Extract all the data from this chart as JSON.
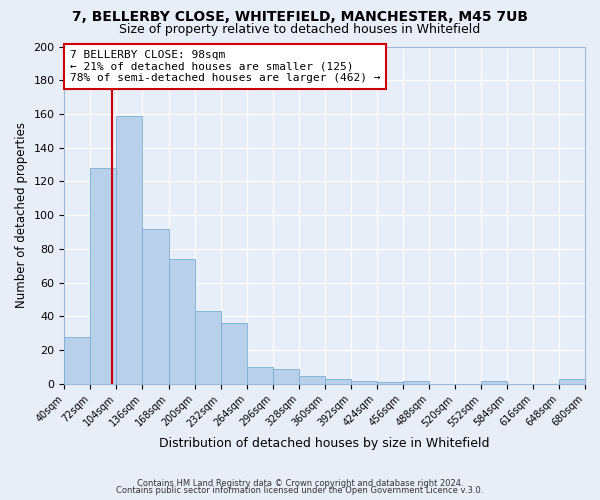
{
  "title": "7, BELLERBY CLOSE, WHITEFIELD, MANCHESTER, M45 7UB",
  "subtitle": "Size of property relative to detached houses in Whitefield",
  "xlabel": "Distribution of detached houses by size in Whitefield",
  "ylabel": "Number of detached properties",
  "bar_color": "#b8d0ea",
  "bar_edge_color": "#7aafd4",
  "background_color": "#e8eef8",
  "grid_color": "#ffffff",
  "bins": [
    40,
    72,
    104,
    136,
    168,
    200,
    232,
    264,
    296,
    328,
    360,
    392,
    424,
    456,
    488,
    520,
    552,
    584,
    616,
    648,
    680
  ],
  "values": [
    28,
    128,
    159,
    92,
    74,
    43,
    36,
    10,
    9,
    5,
    3,
    2,
    1,
    2,
    0,
    0,
    2,
    0,
    0,
    3
  ],
  "tick_labels": [
    "40sqm",
    "72sqm",
    "104sqm",
    "136sqm",
    "168sqm",
    "200sqm",
    "232sqm",
    "264sqm",
    "296sqm",
    "328sqm",
    "360sqm",
    "392sqm",
    "424sqm",
    "456sqm",
    "488sqm",
    "520sqm",
    "552sqm",
    "584sqm",
    "616sqm",
    "648sqm",
    "680sqm"
  ],
  "property_line_x": 98,
  "property_line_color": "#cc0000",
  "annotation_title": "7 BELLERBY CLOSE: 98sqm",
  "annotation_line1": "← 21% of detached houses are smaller (125)",
  "annotation_line2": "78% of semi-detached houses are larger (462) →",
  "annotation_box_color": "#ffffff",
  "annotation_box_edge": "#cc0000",
  "ylim": [
    0,
    200
  ],
  "yticks": [
    0,
    20,
    40,
    60,
    80,
    100,
    120,
    140,
    160,
    180,
    200
  ],
  "footer1": "Contains HM Land Registry data © Crown copyright and database right 2024.",
  "footer2": "Contains public sector information licensed under the Open Government Licence v.3.0."
}
